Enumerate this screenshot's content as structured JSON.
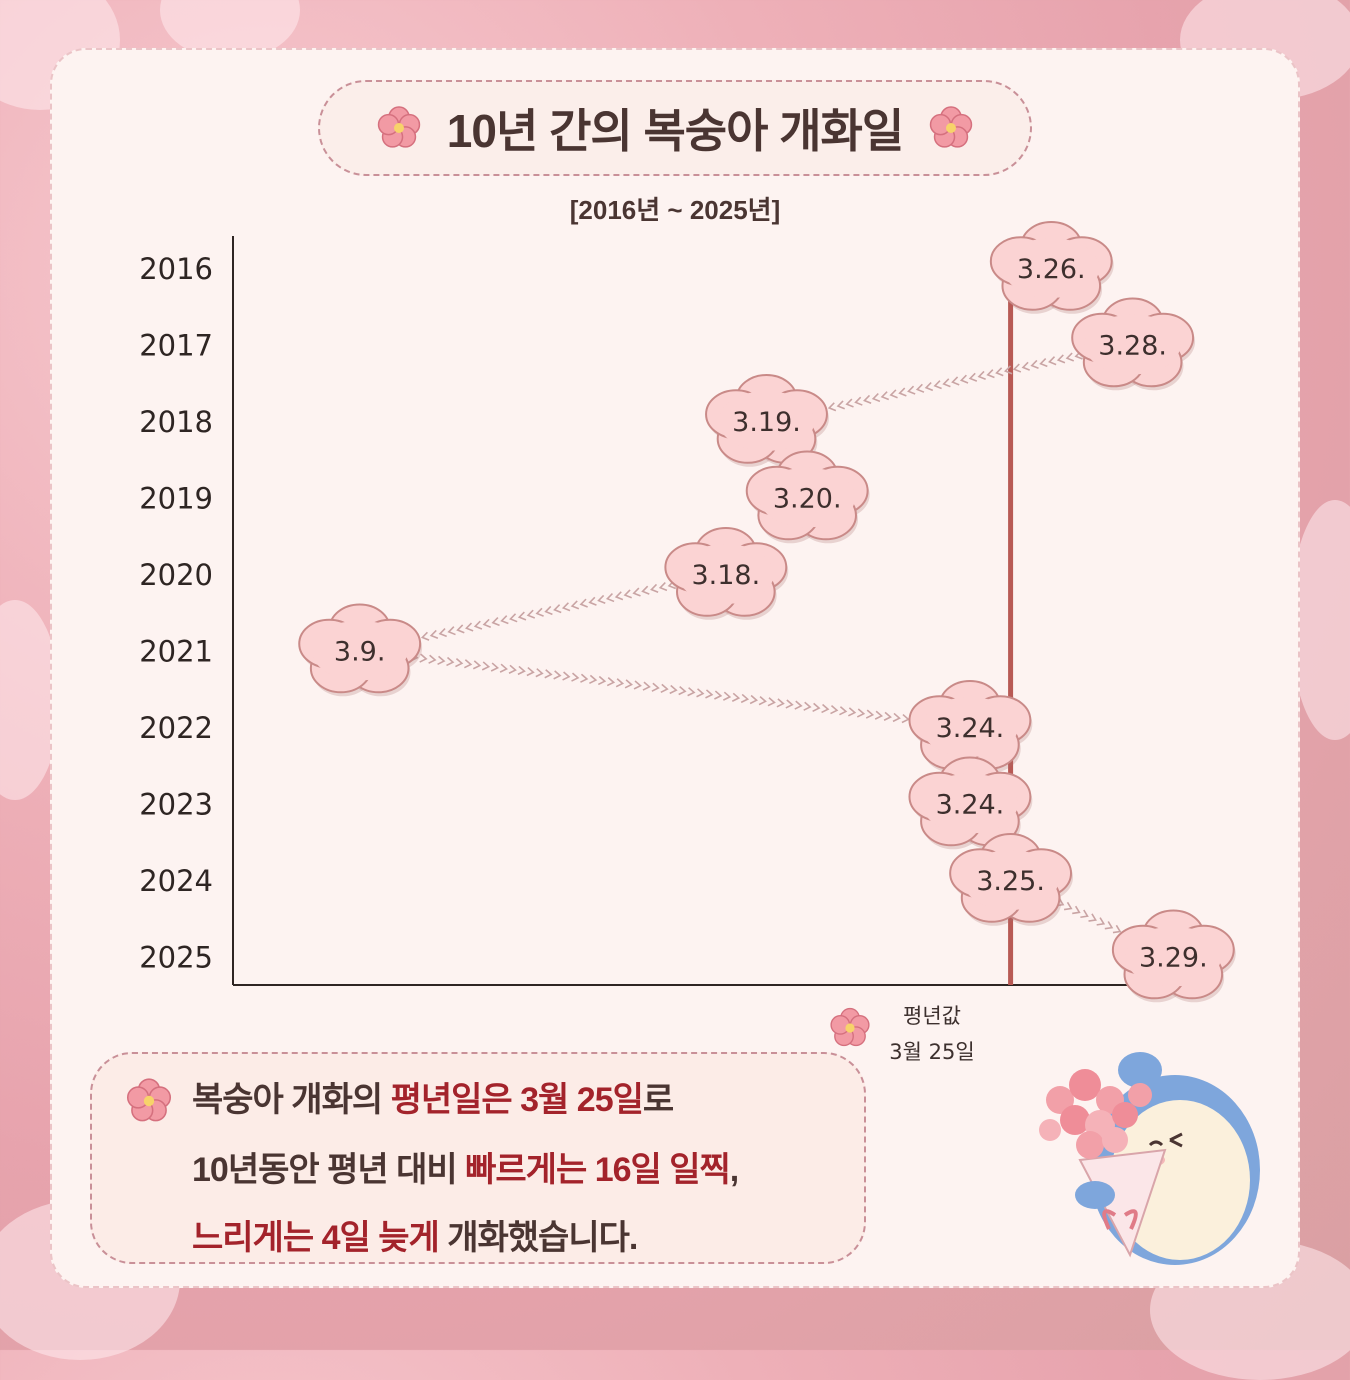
{
  "title": "10년 간의 복숭아 개화일",
  "subtitle": "[2016년 ~ 2025년]",
  "average": {
    "label": "평년값",
    "value": "3월 25일",
    "day": 25
  },
  "summary": {
    "line1": [
      "복숭아 개화의 ",
      "평년일은 3월 25일",
      "로"
    ],
    "line2": [
      "10년동안 평년 대비 ",
      "빠르게는 16일 일찍",
      ","
    ],
    "line3": [
      "느리게는 4일 늦게",
      " 개화했습니다."
    ]
  },
  "colors": {
    "average_line": "#b85a55",
    "flower_fill": "#fbd3d3",
    "flower_stroke": "#c98a88",
    "highlight": "#a3232b",
    "text": "#4a3532"
  },
  "chart_data": {
    "type": "scatter",
    "title": "10년 간의 복숭아 개화일",
    "subtitle": "[2016년 ~ 2025년]",
    "x": "date in March",
    "xlim": [
      8,
      30
    ],
    "categories": [
      "2016",
      "2017",
      "2018",
      "2019",
      "2020",
      "2021",
      "2022",
      "2023",
      "2024",
      "2025"
    ],
    "values": [
      26,
      28,
      19,
      20,
      18,
      9,
      24,
      24,
      25,
      29
    ],
    "labels": [
      "3.26.",
      "3.28.",
      "3.19.",
      "3.20.",
      "3.18.",
      "3.9.",
      "3.24.",
      "3.24.",
      "3.25.",
      "3.29."
    ],
    "reference_line": {
      "value": 25
    }
  }
}
